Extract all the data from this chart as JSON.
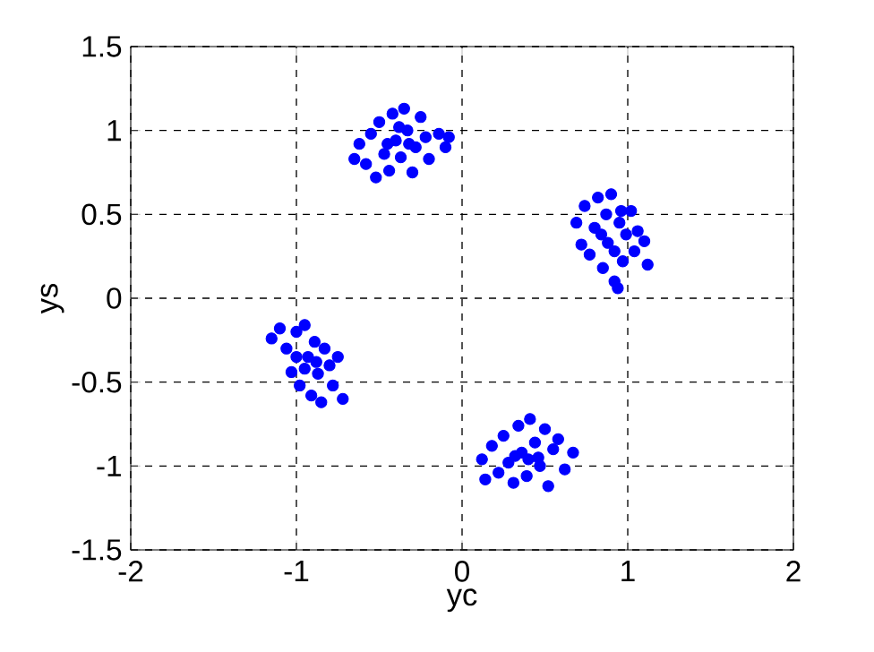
{
  "chart_data": {
    "type": "scatter",
    "xlabel": "yc",
    "ylabel": "ys",
    "xlim": [
      -2,
      2
    ],
    "ylim": [
      -1.5,
      1.5
    ],
    "xticks": [
      -2,
      -1,
      0,
      1,
      2
    ],
    "yticks": [
      -1.5,
      -1,
      -0.5,
      0,
      0.5,
      1,
      1.5
    ],
    "grid": true,
    "marker": "circle",
    "series": [
      {
        "color": "#0000ff",
        "x": [
          -0.65,
          -0.62,
          -0.58,
          -0.55,
          -0.52,
          -0.5,
          -0.47,
          -0.44,
          -0.42,
          -0.4,
          -0.37,
          -0.35,
          -0.33,
          -0.3,
          -0.28,
          -0.25,
          -0.22,
          -0.2,
          -0.14,
          -0.1,
          -0.08,
          -0.45,
          -0.38,
          -0.32,
          0.69,
          0.72,
          0.74,
          0.77,
          0.8,
          0.82,
          0.85,
          0.87,
          0.88,
          0.9,
          0.92,
          0.94,
          0.95,
          0.97,
          0.99,
          1.02,
          1.04,
          1.06,
          1.1,
          1.12,
          0.92,
          0.84,
          0.96,
          -1.15,
          -1.1,
          -1.06,
          -1.03,
          -1.0,
          -0.98,
          -0.95,
          -0.93,
          -0.91,
          -0.89,
          -0.87,
          -0.85,
          -0.83,
          -0.8,
          -0.78,
          -0.75,
          -0.72,
          -0.95,
          -0.88,
          -1.0,
          0.12,
          0.14,
          0.18,
          0.22,
          0.25,
          0.28,
          0.31,
          0.34,
          0.36,
          0.39,
          0.41,
          0.44,
          0.47,
          0.5,
          0.52,
          0.55,
          0.58,
          0.62,
          0.67,
          0.4,
          0.32,
          0.46
        ],
        "values": [
          0.83,
          0.92,
          0.8,
          0.98,
          0.72,
          1.05,
          0.86,
          0.76,
          1.1,
          0.94,
          0.84,
          1.13,
          1.0,
          0.75,
          0.9,
          1.08,
          0.96,
          0.83,
          0.98,
          0.9,
          0.96,
          0.92,
          1.02,
          0.92,
          0.45,
          0.32,
          0.55,
          0.26,
          0.42,
          0.6,
          0.18,
          0.5,
          0.33,
          0.62,
          0.1,
          0.06,
          0.45,
          0.22,
          0.38,
          0.52,
          0.28,
          0.4,
          0.34,
          0.2,
          0.28,
          0.38,
          0.52,
          -0.24,
          -0.18,
          -0.3,
          -0.44,
          -0.2,
          -0.52,
          -0.16,
          -0.35,
          -0.58,
          -0.26,
          -0.45,
          -0.62,
          -0.3,
          -0.4,
          -0.52,
          -0.35,
          -0.6,
          -0.42,
          -0.38,
          -0.35,
          -0.96,
          -1.08,
          -0.88,
          -1.04,
          -0.82,
          -0.98,
          -1.1,
          -0.76,
          -0.92,
          -1.06,
          -0.72,
          -0.86,
          -1.0,
          -0.78,
          -1.12,
          -0.9,
          -0.84,
          -1.02,
          -0.92,
          -0.96,
          -0.94,
          -0.95
        ]
      }
    ]
  }
}
